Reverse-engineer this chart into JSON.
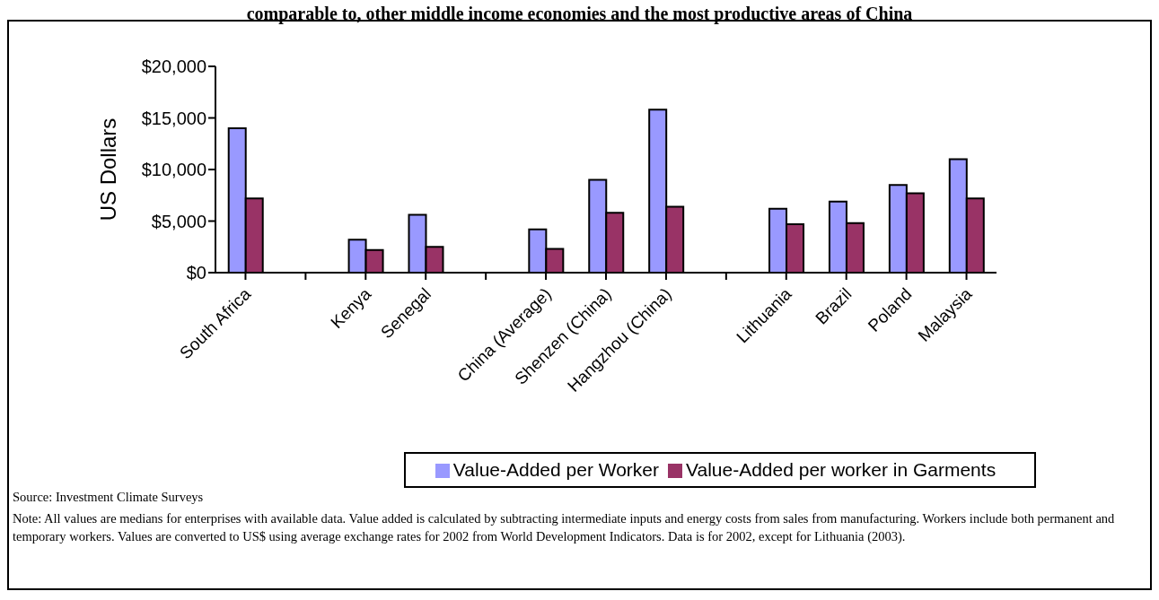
{
  "chart_data": {
    "type": "bar",
    "title": "comparable to, other middle income economies and the most productive areas of China",
    "ylabel": "US Dollars",
    "categories": [
      "South Africa",
      null,
      "Kenya",
      "Senegal",
      null,
      "China (Average)",
      "Shenzen (China)",
      "Hangzhou (China)",
      null,
      "Lithuania",
      "Brazil",
      "Poland",
      "Malaysia"
    ],
    "series": [
      {
        "name": "Value-Added per Worker",
        "color": "#9999ff",
        "values": [
          14000,
          null,
          3200,
          5600,
          null,
          4200,
          9000,
          15800,
          null,
          6200,
          6900,
          8500,
          11000
        ]
      },
      {
        "name": "Value-Added per worker in Garments",
        "color": "#993366",
        "values": [
          7200,
          null,
          2200,
          2500,
          null,
          2300,
          5800,
          6400,
          null,
          4700,
          4800,
          7700,
          7200
        ]
      }
    ],
    "ylim": [
      0,
      20000
    ],
    "yticks": [
      {
        "value": 0,
        "label": "$0"
      },
      {
        "value": 5000,
        "label": "$5,000"
      },
      {
        "value": 10000,
        "label": "$10,000"
      },
      {
        "value": 15000,
        "label": "$15,000"
      },
      {
        "value": 20000,
        "label": "$20,000"
      }
    ],
    "grid": false,
    "legend": "bottom",
    "annotations": [
      "Source: Investment Climate Surveys",
      "Note:  All values are medians for enterprises with available data.  Value added is calculated by subtracting intermediate inputs and energy costs from sales from manufacturing.  Workers include both permanent and temporary workers.  Values are converted to US$ using average exchange rates for 2002 from World Development Indicators.  Data is for 2002, except for Lithuania (2003)."
    ]
  }
}
